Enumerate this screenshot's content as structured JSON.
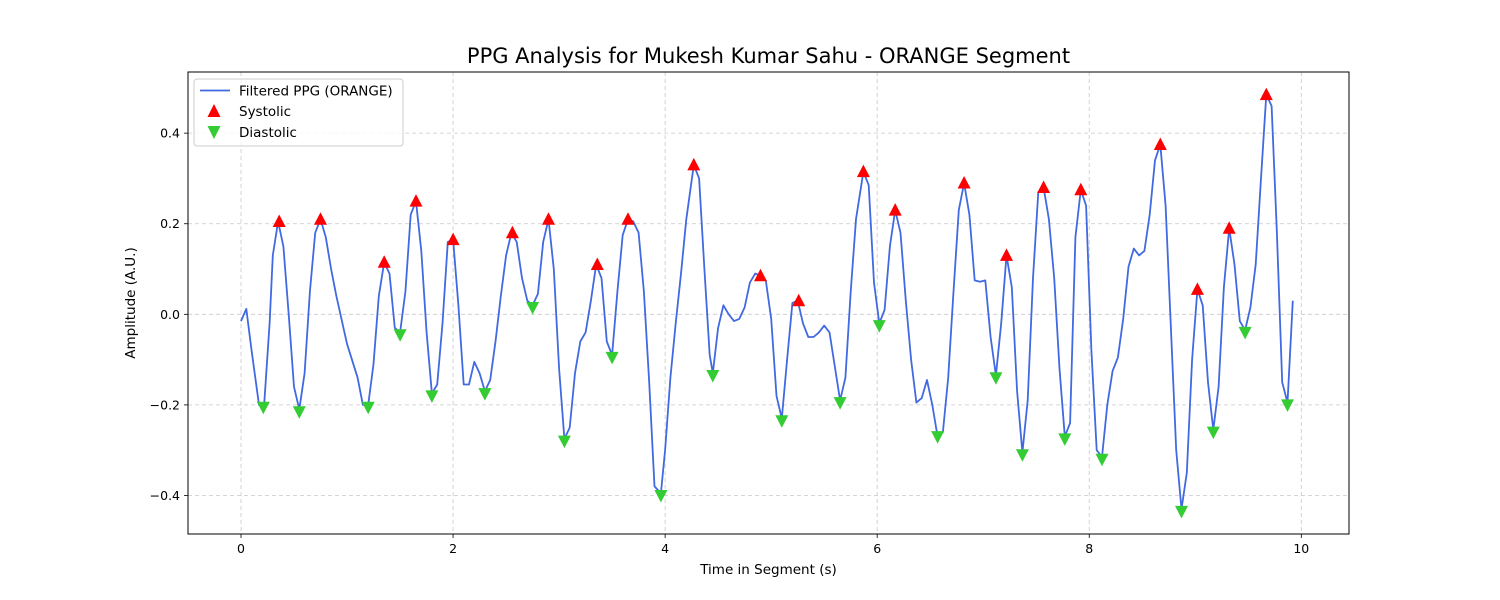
{
  "chart_data": {
    "type": "line",
    "title": "PPG Analysis for Mukesh Kumar Sahu - ORANGE Segment",
    "xlabel": "Time in Segment (s)",
    "ylabel": "Amplitude (A.U.)",
    "xlim": [
      -0.5,
      10.45
    ],
    "ylim": [
      -0.485,
      0.535
    ],
    "xticks": [
      0,
      2,
      4,
      6,
      8,
      10
    ],
    "yticks": [
      -0.4,
      -0.2,
      0.0,
      0.2,
      0.4
    ],
    "xtick_labels": [
      "0",
      "2",
      "4",
      "6",
      "8",
      "10"
    ],
    "ytick_labels": [
      "−0.4",
      "−0.2",
      "0.0",
      "0.2",
      "0.4"
    ],
    "grid": true,
    "legend_position": "top-left",
    "series": [
      {
        "name": "Filtered PPG (ORANGE)",
        "kind": "line",
        "color": "#4169e1",
        "x": [
          0,
          0.05,
          0.1,
          0.17,
          0.22,
          0.27,
          0.3,
          0.35,
          0.4,
          0.45,
          0.5,
          0.55,
          0.6,
          0.65,
          0.7,
          0.75,
          0.8,
          0.85,
          0.9,
          1.0,
          1.1,
          1.15,
          1.2,
          1.25,
          1.3,
          1.35,
          1.4,
          1.45,
          1.5,
          1.55,
          1.6,
          1.65,
          1.7,
          1.75,
          1.8,
          1.85,
          1.9,
          1.95,
          2.0,
          2.05,
          2.1,
          2.15,
          2.2,
          2.25,
          2.3,
          2.35,
          2.4,
          2.45,
          2.5,
          2.55,
          2.6,
          2.65,
          2.7,
          2.75,
          2.8,
          2.85,
          2.9,
          2.95,
          3.0,
          3.05,
          3.1,
          3.15,
          3.2,
          3.25,
          3.3,
          3.35,
          3.4,
          3.45,
          3.5,
          3.55,
          3.6,
          3.65,
          3.7,
          3.75,
          3.8,
          3.85,
          3.9,
          3.96,
          4.0,
          4.05,
          4.1,
          4.15,
          4.2,
          4.27,
          4.32,
          4.37,
          4.42,
          4.45,
          4.5,
          4.55,
          4.6,
          4.65,
          4.7,
          4.75,
          4.8,
          4.85,
          4.9,
          4.95,
          5.0,
          5.05,
          5.1,
          5.15,
          5.2,
          5.25,
          5.3,
          5.35,
          5.4,
          5.45,
          5.5,
          5.55,
          5.6,
          5.65,
          5.7,
          5.75,
          5.8,
          5.87,
          5.92,
          5.97,
          6.02,
          6.07,
          6.12,
          6.17,
          6.22,
          6.27,
          6.32,
          6.37,
          6.42,
          6.47,
          6.52,
          6.57,
          6.62,
          6.67,
          6.72,
          6.77,
          6.82,
          6.87,
          6.92,
          6.97,
          7.02,
          7.07,
          7.12,
          7.17,
          7.22,
          7.27,
          7.32,
          7.37,
          7.42,
          7.47,
          7.52,
          7.57,
          7.62,
          7.67,
          7.72,
          7.77,
          7.82,
          7.87,
          7.92,
          7.97,
          8.02,
          8.07,
          8.12,
          8.17,
          8.22,
          8.27,
          8.32,
          8.37,
          8.42,
          8.47,
          8.52,
          8.57,
          8.62,
          8.67,
          8.72,
          8.77,
          8.82,
          8.87,
          8.92,
          8.97,
          9.02,
          9.07,
          9.12,
          9.17,
          9.22,
          9.27,
          9.32,
          9.37,
          9.42,
          9.47,
          9.52,
          9.57,
          9.62,
          9.67,
          9.72,
          9.77,
          9.82,
          9.87,
          9.92
        ],
        "y": [
          -0.015,
          0.012,
          -0.08,
          -0.2,
          -0.195,
          -0.02,
          0.13,
          0.205,
          0.15,
          0.0,
          -0.16,
          -0.21,
          -0.13,
          0.05,
          0.18,
          0.21,
          0.17,
          0.1,
          0.04,
          -0.065,
          -0.14,
          -0.2,
          -0.2,
          -0.11,
          0.04,
          0.115,
          0.09,
          -0.03,
          -0.04,
          0.05,
          0.22,
          0.25,
          0.14,
          -0.04,
          -0.175,
          -0.155,
          -0.02,
          0.16,
          0.165,
          0.02,
          -0.155,
          -0.155,
          -0.105,
          -0.13,
          -0.17,
          -0.145,
          -0.06,
          0.04,
          0.13,
          0.18,
          0.16,
          0.08,
          0.03,
          0.02,
          0.045,
          0.16,
          0.21,
          0.1,
          -0.12,
          -0.275,
          -0.25,
          -0.13,
          -0.06,
          -0.04,
          0.03,
          0.11,
          0.08,
          -0.06,
          -0.09,
          0.05,
          0.175,
          0.21,
          0.205,
          0.18,
          0.05,
          -0.15,
          -0.38,
          -0.395,
          -0.3,
          -0.14,
          -0.02,
          0.09,
          0.21,
          0.33,
          0.3,
          0.1,
          -0.09,
          -0.13,
          -0.03,
          0.02,
          0.0,
          -0.015,
          -0.01,
          0.015,
          0.07,
          0.09,
          0.085,
          0.075,
          -0.01,
          -0.18,
          -0.23,
          -0.1,
          0.025,
          0.03,
          -0.02,
          -0.05,
          -0.05,
          -0.04,
          -0.025,
          -0.04,
          -0.115,
          -0.19,
          -0.14,
          0.05,
          0.21,
          0.315,
          0.285,
          0.07,
          -0.02,
          0.01,
          0.15,
          0.23,
          0.18,
          0.03,
          -0.1,
          -0.195,
          -0.185,
          -0.145,
          -0.2,
          -0.27,
          -0.26,
          -0.14,
          0.05,
          0.23,
          0.29,
          0.22,
          0.075,
          0.072,
          0.075,
          -0.05,
          -0.135,
          -0.02,
          0.13,
          0.06,
          -0.17,
          -0.305,
          -0.19,
          0.08,
          0.27,
          0.28,
          0.21,
          0.08,
          -0.12,
          -0.27,
          -0.24,
          0.17,
          0.275,
          0.24,
          -0.08,
          -0.3,
          -0.315,
          -0.2,
          -0.125,
          -0.095,
          -0.01,
          0.105,
          0.145,
          0.13,
          0.14,
          0.22,
          0.34,
          0.375,
          0.24,
          -0.03,
          -0.3,
          -0.43,
          -0.35,
          -0.1,
          0.055,
          0.02,
          -0.15,
          -0.255,
          -0.16,
          0.06,
          0.19,
          0.11,
          -0.015,
          -0.035,
          0.015,
          0.11,
          0.3,
          0.485,
          0.46,
          0.18,
          -0.15,
          -0.195,
          0.03
        ]
      },
      {
        "name": "Systolic",
        "kind": "marker",
        "marker": "triangle-up",
        "color": "#ff0000",
        "x": [
          0.36,
          0.75,
          1.35,
          1.65,
          2.0,
          2.56,
          2.9,
          3.36,
          3.65,
          4.27,
          4.9,
          5.26,
          5.87,
          6.17,
          6.82,
          7.22,
          7.57,
          7.92,
          8.67,
          9.02,
          9.32,
          9.67
        ],
        "y": [
          0.205,
          0.21,
          0.115,
          0.25,
          0.165,
          0.18,
          0.21,
          0.11,
          0.21,
          0.33,
          0.085,
          0.03,
          0.315,
          0.23,
          0.29,
          0.13,
          0.28,
          0.275,
          0.375,
          0.055,
          0.19,
          0.485
        ]
      },
      {
        "name": "Diastolic",
        "kind": "marker",
        "marker": "triangle-down",
        "color": "#33cc33",
        "x": [
          0.21,
          0.55,
          1.2,
          1.5,
          1.8,
          2.3,
          2.75,
          3.05,
          3.5,
          3.96,
          4.45,
          5.1,
          5.65,
          6.02,
          6.57,
          7.12,
          7.37,
          7.77,
          8.12,
          8.87,
          9.17,
          9.47,
          9.87
        ],
        "y": [
          -0.205,
          -0.215,
          -0.205,
          -0.045,
          -0.18,
          -0.175,
          0.015,
          -0.28,
          -0.095,
          -0.4,
          -0.135,
          -0.235,
          -0.195,
          -0.025,
          -0.27,
          -0.14,
          -0.31,
          -0.275,
          -0.32,
          -0.435,
          -0.26,
          -0.04,
          -0.2
        ]
      }
    ]
  }
}
